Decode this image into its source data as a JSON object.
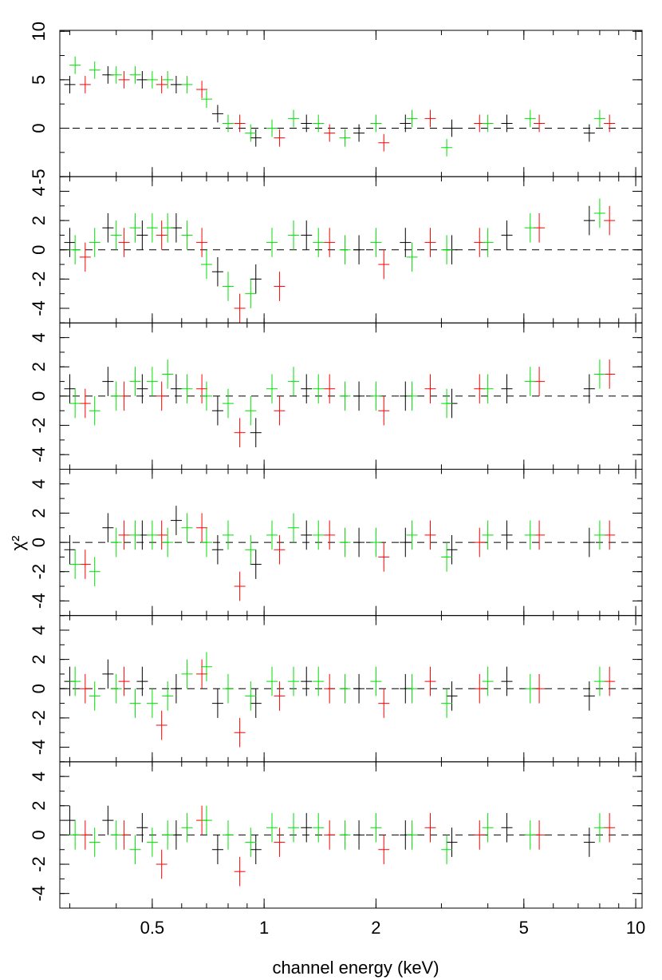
{
  "xlabel": "channel energy (keV)",
  "ylabel": "χ²",
  "chart_data": [
    {
      "type": "errorbar",
      "xlim": [
        0.282,
        10.4
      ],
      "ylim": [
        -5,
        10.1
      ],
      "yticks": [
        -5,
        0,
        5,
        10
      ],
      "log_x": true,
      "zero_line": true,
      "series": [
        {
          "color": "#000000",
          "x": [
            0.3,
            0.38,
            0.47,
            0.58,
            0.75,
            0.95,
            1.3,
            1.8,
            2.4,
            3.2,
            4.5,
            7.5
          ],
          "values": [
            4.5,
            5.5,
            5,
            4.5,
            1.5,
            -1,
            0.5,
            -0.5,
            0.5,
            0,
            0.5,
            -0.5
          ],
          "errors": [
            0.9,
            0.9,
            0.9,
            0.9,
            0.9,
            0.9,
            0.9,
            0.9,
            0.9,
            0.9,
            0.9,
            0.9
          ]
        },
        {
          "color": "#ff0000",
          "x": [
            0.33,
            0.42,
            0.53,
            0.68,
            0.86,
            1.1,
            1.5,
            2.1,
            2.8,
            3.8,
            5.5,
            8.5
          ],
          "values": [
            4.5,
            5,
            4.5,
            4,
            0.5,
            -1,
            -0.5,
            -1.5,
            1,
            0.5,
            0.5,
            0.5
          ],
          "errors": [
            0.9,
            0.9,
            0.9,
            0.9,
            0.9,
            0.9,
            0.9,
            0.9,
            0.9,
            0.9,
            0.9,
            0.9
          ]
        },
        {
          "color": "#00e000",
          "x": [
            0.31,
            0.35,
            0.4,
            0.45,
            0.5,
            0.55,
            0.62,
            0.7,
            0.8,
            0.92,
            1.05,
            1.2,
            1.4,
            1.65,
            2,
            2.5,
            3.1,
            4,
            5.2,
            8
          ],
          "values": [
            6.5,
            6,
            5.5,
            5.5,
            5,
            5,
            4.5,
            3,
            0.5,
            -0.5,
            0,
            1,
            0.5,
            -1,
            0.5,
            1,
            -2,
            0.5,
            1,
            1
          ],
          "errors": [
            0.9,
            0.9,
            0.9,
            0.9,
            0.9,
            0.9,
            0.9,
            0.9,
            0.9,
            0.9,
            0.9,
            0.9,
            0.9,
            0.9,
            0.9,
            0.9,
            0.9,
            0.9,
            0.9,
            0.9
          ]
        }
      ]
    },
    {
      "type": "errorbar",
      "xlim": [
        0.282,
        10.4
      ],
      "ylim": [
        -5,
        5
      ],
      "yticks": [
        -4,
        -2,
        0,
        2,
        4
      ],
      "log_x": true,
      "zero_line": true,
      "series": [
        {
          "color": "#000000",
          "x": [
            0.3,
            0.38,
            0.47,
            0.58,
            0.75,
            0.95,
            1.3,
            1.8,
            2.4,
            3.2,
            4.5,
            7.5
          ],
          "values": [
            0.5,
            1.5,
            1,
            1.5,
            -1.5,
            -2,
            1,
            0,
            0.5,
            0,
            1,
            2
          ],
          "errors": [
            1,
            1,
            1,
            1,
            1,
            1,
            1,
            1,
            1,
            1,
            1,
            1
          ]
        },
        {
          "color": "#ff0000",
          "x": [
            0.33,
            0.42,
            0.53,
            0.68,
            0.86,
            1.1,
            1.5,
            2.1,
            2.8,
            3.8,
            5.5,
            8.5
          ],
          "values": [
            -0.5,
            0.5,
            1,
            0.5,
            -4,
            -2.5,
            0.5,
            -1,
            0.5,
            0.5,
            1.5,
            2
          ],
          "errors": [
            1,
            1,
            1,
            1,
            1,
            1,
            1,
            1,
            1,
            1,
            1,
            1
          ]
        },
        {
          "color": "#00e000",
          "x": [
            0.31,
            0.35,
            0.4,
            0.45,
            0.5,
            0.55,
            0.62,
            0.7,
            0.8,
            0.92,
            1.05,
            1.2,
            1.4,
            1.65,
            2,
            2.5,
            3.1,
            4,
            5.2,
            8
          ],
          "values": [
            0,
            0.5,
            1,
            1.5,
            1.5,
            1.5,
            1,
            -1,
            -2.5,
            -3,
            0.5,
            1,
            0.5,
            0,
            0.5,
            -0.5,
            0,
            0.5,
            1.5,
            2.5
          ],
          "errors": [
            1,
            1,
            1,
            1,
            1,
            1,
            1,
            1,
            1,
            1,
            1,
            1,
            1,
            1,
            1,
            1,
            1,
            1,
            1,
            1
          ]
        }
      ]
    },
    {
      "type": "errorbar",
      "xlim": [
        0.282,
        10.4
      ],
      "ylim": [
        -5,
        5
      ],
      "yticks": [
        -4,
        -2,
        0,
        2,
        4
      ],
      "log_x": true,
      "zero_line": true,
      "series": [
        {
          "color": "#000000",
          "x": [
            0.3,
            0.38,
            0.47,
            0.58,
            0.75,
            0.95,
            1.3,
            1.8,
            2.4,
            3.2,
            4.5,
            7.5
          ],
          "values": [
            0.5,
            1,
            0.5,
            0.5,
            -1,
            -2.5,
            0.5,
            0,
            0,
            -0.5,
            0.5,
            0.5
          ],
          "errors": [
            1,
            1,
            1,
            1,
            1,
            1,
            1,
            1,
            1,
            1,
            1,
            1
          ]
        },
        {
          "color": "#ff0000",
          "x": [
            0.33,
            0.42,
            0.53,
            0.68,
            0.86,
            1.1,
            1.5,
            2.1,
            2.8,
            3.8,
            5.5,
            8.5
          ],
          "values": [
            -0.5,
            0,
            0,
            0.5,
            -2.5,
            -1,
            0.5,
            -1,
            0.5,
            0.5,
            1,
            1.5
          ],
          "errors": [
            1,
            1,
            1,
            1,
            1,
            1,
            1,
            1,
            1,
            1,
            1,
            1
          ]
        },
        {
          "color": "#00e000",
          "x": [
            0.31,
            0.35,
            0.4,
            0.45,
            0.5,
            0.55,
            0.62,
            0.7,
            0.8,
            0.92,
            1.05,
            1.2,
            1.4,
            1.65,
            2,
            2.5,
            3.1,
            4,
            5.2,
            8
          ],
          "values": [
            -0.5,
            -1,
            0,
            1,
            1,
            1.5,
            0.5,
            0,
            -0.5,
            -1,
            0.5,
            1,
            0.5,
            0,
            0,
            0,
            -0.5,
            0.5,
            1,
            1.5
          ],
          "errors": [
            1,
            1,
            1,
            1,
            1,
            1,
            1,
            1,
            1,
            1,
            1,
            1,
            1,
            1,
            1,
            1,
            1,
            1,
            1,
            1
          ]
        }
      ]
    },
    {
      "type": "errorbar",
      "xlim": [
        0.282,
        10.4
      ],
      "ylim": [
        -5,
        5
      ],
      "yticks": [
        -4,
        -2,
        0,
        2,
        4
      ],
      "log_x": true,
      "zero_line": true,
      "series": [
        {
          "color": "#000000",
          "x": [
            0.3,
            0.38,
            0.47,
            0.58,
            0.75,
            0.95,
            1.3,
            1.8,
            2.4,
            3.2,
            4.5,
            7.5
          ],
          "values": [
            -0.5,
            1,
            0.5,
            1.5,
            -0.5,
            -1.5,
            0.5,
            0,
            0,
            -0.5,
            0.5,
            0
          ],
          "errors": [
            1,
            1,
            1,
            1,
            1,
            1,
            1,
            1,
            1,
            1,
            1,
            1
          ]
        },
        {
          "color": "#ff0000",
          "x": [
            0.33,
            0.42,
            0.53,
            0.68,
            0.86,
            1.1,
            1.5,
            2.1,
            2.8,
            3.8,
            5.5,
            8.5
          ],
          "values": [
            -1.5,
            0.5,
            0.5,
            1,
            -3,
            -0.5,
            0.5,
            -1,
            0.5,
            0,
            0.5,
            0.5
          ],
          "errors": [
            1,
            1,
            1,
            1,
            1,
            1,
            1,
            1,
            1,
            1,
            1,
            1
          ]
        },
        {
          "color": "#00e000",
          "x": [
            0.31,
            0.35,
            0.4,
            0.45,
            0.5,
            0.55,
            0.62,
            0.7,
            0.8,
            0.92,
            1.05,
            1.2,
            1.4,
            1.65,
            2,
            2.5,
            3.1,
            4,
            5.2,
            8
          ],
          "values": [
            -1.5,
            -2,
            0,
            0.5,
            0.5,
            0,
            1,
            0,
            0.5,
            -0.5,
            0.5,
            1,
            0.5,
            0,
            0,
            0.5,
            -1,
            0.5,
            0.5,
            0.5
          ],
          "errors": [
            1,
            1,
            1,
            1,
            1,
            1,
            1,
            1,
            1,
            1,
            1,
            1,
            1,
            1,
            1,
            1,
            1,
            1,
            1,
            1
          ]
        }
      ]
    },
    {
      "type": "errorbar",
      "xlim": [
        0.282,
        10.4
      ],
      "ylim": [
        -5,
        5
      ],
      "yticks": [
        -4,
        -2,
        0,
        2,
        4
      ],
      "log_x": true,
      "zero_line": true,
      "series": [
        {
          "color": "#000000",
          "x": [
            0.3,
            0.38,
            0.47,
            0.58,
            0.75,
            0.95,
            1.3,
            1.8,
            2.4,
            3.2,
            4.5,
            7.5
          ],
          "values": [
            0.5,
            1,
            0.5,
            0,
            -1,
            -1,
            0.5,
            0,
            0,
            -0.5,
            0.5,
            -0.5
          ],
          "errors": [
            1,
            1,
            1,
            1,
            1,
            1,
            1,
            1,
            1,
            1,
            1,
            1
          ]
        },
        {
          "color": "#ff0000",
          "x": [
            0.33,
            0.42,
            0.53,
            0.68,
            0.86,
            1.1,
            1.5,
            2.1,
            2.8,
            3.8,
            5.5,
            8.5
          ],
          "values": [
            0,
            0.5,
            -2.5,
            1,
            -3,
            -0.5,
            0,
            -1,
            0.5,
            0,
            0,
            0.5
          ],
          "errors": [
            1,
            1,
            1,
            1,
            1,
            1,
            1,
            1,
            1,
            1,
            1,
            1
          ]
        },
        {
          "color": "#00e000",
          "x": [
            0.31,
            0.35,
            0.4,
            0.45,
            0.5,
            0.55,
            0.62,
            0.7,
            0.8,
            0.92,
            1.05,
            1.2,
            1.4,
            1.65,
            2,
            2.5,
            3.1,
            4,
            5.2,
            8
          ],
          "values": [
            0.5,
            -0.5,
            0,
            -1,
            -1,
            -0.5,
            1,
            1.5,
            0,
            -0.5,
            0.5,
            0.5,
            0.5,
            0,
            0.5,
            0,
            -1,
            0.5,
            0,
            0.5
          ],
          "errors": [
            1,
            1,
            1,
            1,
            1,
            1,
            1,
            1,
            1,
            1,
            1,
            1,
            1,
            1,
            1,
            1,
            1,
            1,
            1,
            1
          ]
        }
      ]
    },
    {
      "type": "errorbar",
      "xlim": [
        0.282,
        10.4
      ],
      "ylim": [
        -5,
        5
      ],
      "yticks": [
        -4,
        -2,
        0,
        2,
        4
      ],
      "log_x": true,
      "zero_line": true,
      "xticks": [
        0.5,
        1,
        2,
        5,
        10
      ],
      "series": [
        {
          "color": "#000000",
          "x": [
            0.3,
            0.38,
            0.47,
            0.58,
            0.75,
            0.95,
            1.3,
            1.8,
            2.4,
            3.2,
            4.5,
            7.5
          ],
          "values": [
            1,
            1,
            0.5,
            0,
            -1,
            -1,
            0.5,
            0,
            0,
            -0.5,
            0.5,
            -0.5
          ],
          "errors": [
            1,
            1,
            1,
            1,
            1,
            1,
            1,
            1,
            1,
            1,
            1,
            1
          ]
        },
        {
          "color": "#ff0000",
          "x": [
            0.33,
            0.42,
            0.53,
            0.68,
            0.86,
            1.1,
            1.5,
            2.1,
            2.8,
            3.8,
            5.5,
            8.5
          ],
          "values": [
            0,
            0,
            -2,
            1,
            -2.5,
            -0.5,
            0,
            -1,
            0.5,
            0,
            0,
            0.5
          ],
          "errors": [
            1,
            1,
            1,
            1,
            1,
            1,
            1,
            1,
            1,
            1,
            1,
            1
          ]
        },
        {
          "color": "#00e000",
          "x": [
            0.31,
            0.35,
            0.4,
            0.45,
            0.5,
            0.55,
            0.62,
            0.7,
            0.8,
            0.92,
            1.05,
            1.2,
            1.4,
            1.65,
            2,
            2.5,
            3.1,
            4,
            5.2,
            8
          ],
          "values": [
            0,
            -0.5,
            0,
            -1,
            -0.5,
            0,
            0.5,
            1,
            0,
            -0.5,
            0.5,
            0.5,
            0.5,
            0,
            0.5,
            0,
            -1,
            0.5,
            0,
            0.5
          ],
          "errors": [
            1,
            1,
            1,
            1,
            1,
            1,
            1,
            1,
            1,
            1,
            1,
            1,
            1,
            1,
            1,
            1,
            1,
            1,
            1,
            1
          ]
        }
      ]
    }
  ]
}
